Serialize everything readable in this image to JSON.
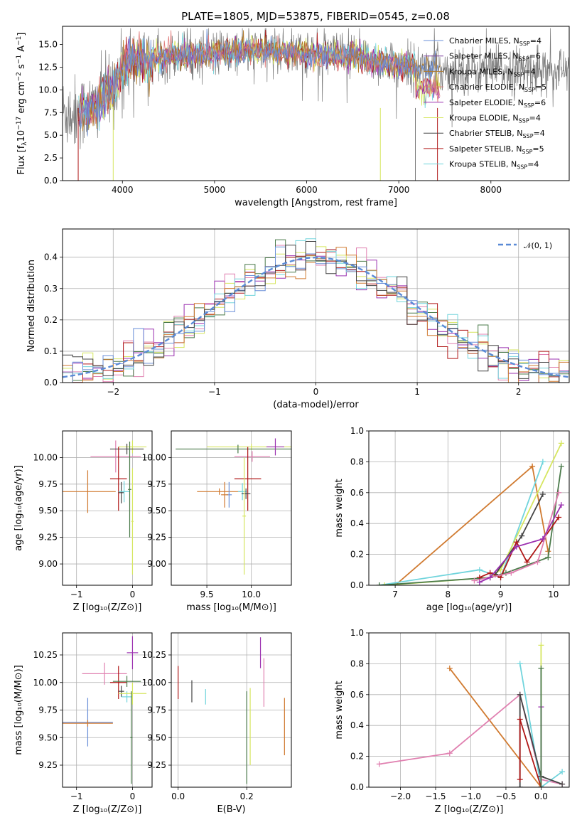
{
  "palette": {
    "chabrier_miles": "#6a8fd8",
    "salpeter_miles": "#7b3f9e",
    "kroupa_miles": "#b07a2a",
    "chabrier_elodie": "#e07a7a",
    "salpeter_elodie": "#9b30b0",
    "kroupa_elodie": "#d6e660",
    "chabrier_stelib": "#444444",
    "salpeter_stelib": "#b01818",
    "kroupa_stelib": "#70d4dc",
    "model_grey": "#777777",
    "orange": "#d07a30",
    "pink": "#e080b0",
    "darkgreen": "#4a7a4a",
    "normal_curve": "#5a8ad6"
  },
  "chart_data": [
    {
      "id": "spectrum",
      "type": "line",
      "title": "PLATE=1805, MJD=53875, FIBERID=0545, z=0.08",
      "xlabel": "wavelength [Angstrom, rest frame]",
      "ylabel": "Flux [f_λ 10^-17 erg cm^-2 s^-1 A^-1]",
      "xlim": [
        3350,
        8850
      ],
      "ylim": [
        0,
        17
      ],
      "xticks": [
        4000,
        5000,
        6000,
        7000,
        8000
      ],
      "yticks": [
        "0.0",
        "2.5",
        "5.0",
        "7.5",
        "10.0",
        "12.5",
        "15.0"
      ],
      "grid": false,
      "legend_position": "top-right",
      "series": [
        {
          "name": "Chabrier MILES, N",
          "sub": "SSP",
          "suffix": "=4",
          "color_key": "chabrier_miles"
        },
        {
          "name": "Salpeter MILES, N",
          "sub": "SSP",
          "suffix": "=6",
          "color_key": "salpeter_miles"
        },
        {
          "name": "Kroupa MILES, N",
          "sub": "SSP",
          "suffix": "=4",
          "color_key": "kroupa_miles"
        },
        {
          "name": "Chabrier ELODIE, N",
          "sub": "SSP",
          "suffix": "=5",
          "color_key": "chabrier_elodie"
        },
        {
          "name": "Salpeter ELODIE, N",
          "sub": "SSP",
          "suffix": "=6",
          "color_key": "salpeter_elodie"
        },
        {
          "name": "Kroupa ELODIE, N",
          "sub": "SSP",
          "suffix": "=4",
          "color_key": "kroupa_elodie"
        },
        {
          "name": "Chabrier STELIB, N",
          "sub": "SSP",
          "suffix": "=4",
          "color_key": "chabrier_stelib"
        },
        {
          "name": "Salpeter STELIB, N",
          "sub": "SSP",
          "suffix": "=5",
          "color_key": "salpeter_stelib"
        },
        {
          "name": "Kroupa STELIB, N",
          "sub": "SSP",
          "suffix": "=4",
          "color_key": "kroupa_stelib"
        }
      ],
      "continuum_x": [
        3500,
        3700,
        3900,
        4000,
        4100,
        4300,
        4500,
        5000,
        5500,
        6000,
        6500,
        7000,
        7200,
        7400,
        8000,
        8500,
        8800
      ],
      "continuum_y": [
        7.5,
        8.0,
        10.5,
        12.5,
        13.5,
        13.2,
        13.8,
        14.0,
        14.3,
        14.0,
        13.6,
        12.8,
        12.4,
        12.3,
        12.1,
        12.2,
        12.1
      ]
    },
    {
      "id": "residuals",
      "type": "bar",
      "xlabel": "(data-model)/error",
      "ylabel": "Normed distribution",
      "xlim": [
        -2.5,
        2.5
      ],
      "ylim": [
        0,
        0.49
      ],
      "xticks": [
        "−2",
        "−1",
        "0",
        "1",
        "2"
      ],
      "yticks": [
        "0.0",
        "0.1",
        "0.2",
        "0.3",
        "0.4"
      ],
      "grid": true,
      "legend": {
        "label": "𝒩(0, 1)",
        "position": "top-right"
      },
      "bin_width": 0.1
    },
    {
      "id": "z-age",
      "type": "scatter",
      "xlabel": "Z [log₁₀(Z/Z⊙)]",
      "ylabel": "age  [log₁₀(age/yr)]",
      "xlim": [
        -1.25,
        0.35
      ],
      "ylim": [
        8.8,
        10.25
      ],
      "xticks": [
        "−1",
        "0"
      ],
      "yticks": [
        "9.00",
        "9.25",
        "9.50",
        "9.75",
        "10.00"
      ],
      "grid": true,
      "points": [
        {
          "x": -0.8,
          "y": 9.68,
          "xerr": 0.5,
          "yerr": 0.2,
          "color_key": "orange"
        },
        {
          "x": -0.3,
          "y": 10.01,
          "xerr": 0.45,
          "yerr": 0.15,
          "color_key": "pink"
        },
        {
          "x": 0.0,
          "y": 10.1,
          "xerr": 0.25,
          "yerr": 0.06,
          "color_key": "kroupa_elodie"
        },
        {
          "x": -0.1,
          "y": 10.08,
          "xerr": 0.3,
          "yerr": 0.05,
          "color_key": "chabrier_stelib"
        },
        {
          "x": -0.25,
          "y": 9.8,
          "xerr": 0.15,
          "yerr": 0.3,
          "color_key": "salpeter_stelib"
        },
        {
          "x": -0.2,
          "y": 9.67,
          "xerr": 0.05,
          "yerr": 0.1,
          "color_key": "chabrier_stelib"
        },
        {
          "x": -0.15,
          "y": 9.68,
          "xerr": 0.1,
          "yerr": 0.1,
          "color_key": "kroupa_stelib"
        },
        {
          "x": -0.05,
          "y": 9.7,
          "xerr": 0.03,
          "yerr": 0.45,
          "color_key": "darkgreen"
        },
        {
          "x": 0.0,
          "y": 9.4,
          "xerr": 0.02,
          "yerr": 0.5,
          "color_key": "kroupa_elodie"
        }
      ]
    },
    {
      "id": "mass-age",
      "type": "scatter",
      "xlabel": "mass [log₁₀(M/M⊙)]",
      "ylabel": "",
      "xlim": [
        9.1,
        10.45
      ],
      "ylim": [
        8.8,
        10.25
      ],
      "xticks": [
        "9.5",
        "10.0"
      ],
      "yticks": [
        "9.00",
        "9.25",
        "9.50",
        "9.75",
        "10.00"
      ],
      "grid": true,
      "points": [
        {
          "x": 9.64,
          "y": 9.68,
          "xerr": 0.25,
          "yerr": 0.03,
          "color_key": "orange"
        },
        {
          "x": 9.75,
          "y": 9.65,
          "xerr": 0.03,
          "yerr": 0.12,
          "color_key": "chabrier_miles"
        },
        {
          "x": 9.7,
          "y": 9.65,
          "xerr": 0.04,
          "yerr": 0.12,
          "color_key": "orange"
        },
        {
          "x": 10.0,
          "y": 10.1,
          "xerr": 0.5,
          "yerr": 0.03,
          "color_key": "kroupa_elodie"
        },
        {
          "x": 9.85,
          "y": 10.08,
          "xerr": 0.7,
          "yerr": 0.04,
          "color_key": "darkgreen"
        },
        {
          "x": 10.01,
          "y": 10.01,
          "xerr": 0.2,
          "yerr": 0.05,
          "color_key": "pink"
        },
        {
          "x": 10.27,
          "y": 10.1,
          "xerr": 0.1,
          "yerr": 0.08,
          "color_key": "salpeter_elodie"
        },
        {
          "x": 9.96,
          "y": 9.8,
          "xerr": 0.15,
          "yerr": 0.3,
          "color_key": "salpeter_stelib"
        },
        {
          "x": 9.9,
          "y": 9.68,
          "xerr": 0.05,
          "yerr": 0.08,
          "color_key": "kroupa_stelib"
        },
        {
          "x": 9.94,
          "y": 9.66,
          "xerr": 0.05,
          "yerr": 0.05,
          "color_key": "chabrier_stelib"
        },
        {
          "x": 9.92,
          "y": 9.45,
          "xerr": 0.02,
          "yerr": 0.55,
          "color_key": "kroupa_elodie"
        }
      ]
    },
    {
      "id": "age-weight",
      "type": "line",
      "xlabel": "age  [log₁₀(age/yr)]",
      "ylabel": "mass weight",
      "xlim": [
        6.5,
        10.3
      ],
      "ylim": [
        0,
        1.0
      ],
      "xticks": [
        "7",
        "8",
        "9",
        "10"
      ],
      "yticks": [
        "0.0",
        "0.2",
        "0.4",
        "0.6",
        "0.8",
        "1.0"
      ],
      "grid": true,
      "series": [
        {
          "color_key": "orange",
          "x": [
            6.7,
            7.0,
            9.6,
            9.9,
            9.6
          ],
          "y": [
            0.0,
            0.0,
            0.77,
            0.22,
            0.77
          ]
        },
        {
          "color_key": "kroupa_stelib",
          "x": [
            6.7,
            8.6,
            9.0,
            9.8
          ],
          "y": [
            0.0,
            0.1,
            0.05,
            0.8
          ]
        },
        {
          "color_key": "kroupa_elodie",
          "x": [
            6.8,
            8.8,
            9.0,
            10.15
          ],
          "y": [
            0.0,
            0.05,
            0.1,
            0.92
          ]
        },
        {
          "color_key": "darkgreen",
          "x": [
            6.7,
            8.8,
            9.1,
            9.9,
            10.15
          ],
          "y": [
            0.0,
            0.05,
            0.08,
            0.18,
            0.77
          ]
        },
        {
          "color_key": "chabrier_stelib",
          "x": [
            8.9,
            9.4,
            9.8
          ],
          "y": [
            0.07,
            0.32,
            0.59
          ]
        },
        {
          "color_key": "salpeter_stelib",
          "x": [
            8.6,
            8.8,
            9.0,
            9.3,
            9.5,
            10.1
          ],
          "y": [
            0.05,
            0.08,
            0.05,
            0.28,
            0.15,
            0.44
          ]
        },
        {
          "color_key": "pink",
          "x": [
            8.5,
            9.2,
            9.7,
            10.1
          ],
          "y": [
            0.03,
            0.08,
            0.15,
            0.6
          ]
        },
        {
          "color_key": "salpeter_elodie",
          "x": [
            8.6,
            8.8,
            9.3,
            9.8,
            10.15
          ],
          "y": [
            0.02,
            0.05,
            0.25,
            0.3,
            0.52
          ]
        }
      ]
    },
    {
      "id": "z-mass",
      "type": "scatter",
      "xlabel": "Z [log₁₀(Z/Z⊙)]",
      "ylabel": "mass [log₁₀(M/M⊙)]",
      "xlim": [
        -1.25,
        0.35
      ],
      "ylim": [
        9.05,
        10.45
      ],
      "xticks": [
        "−1",
        "0"
      ],
      "yticks": [
        "9.25",
        "9.50",
        "9.75",
        "10.00",
        "10.25"
      ],
      "grid": true,
      "points": [
        {
          "x": -0.8,
          "y": 9.64,
          "xerr": 0.45,
          "yerr": 0.22,
          "color_key": "chabrier_miles"
        },
        {
          "x": -0.8,
          "y": 9.63,
          "xerr": 0.45,
          "yerr": 0.03,
          "color_key": "orange"
        },
        {
          "x": -0.5,
          "y": 10.08,
          "xerr": 0.4,
          "yerr": 0.1,
          "color_key": "pink"
        },
        {
          "x": 0.0,
          "y": 10.27,
          "xerr": 0.1,
          "yerr": 0.15,
          "color_key": "salpeter_elodie"
        },
        {
          "x": -0.25,
          "y": 10.0,
          "xerr": 0.15,
          "yerr": 0.15,
          "color_key": "salpeter_stelib"
        },
        {
          "x": -0.2,
          "y": 9.92,
          "xerr": 0.05,
          "yerr": 0.05,
          "color_key": "chabrier_stelib"
        },
        {
          "x": -0.1,
          "y": 10.01,
          "xerr": 0.25,
          "yerr": 0.05,
          "color_key": "darkgreen"
        },
        {
          "x": -0.1,
          "y": 9.87,
          "xerr": 0.1,
          "yerr": 0.05,
          "color_key": "kroupa_stelib"
        },
        {
          "x": 0.0,
          "y": 9.9,
          "xerr": 0.25,
          "yerr": 0.1,
          "color_key": "kroupa_elodie"
        },
        {
          "x": -0.02,
          "y": 9.5,
          "xerr": 0.02,
          "yerr": 0.42,
          "color_key": "darkgreen"
        }
      ]
    },
    {
      "id": "ebv-mass",
      "type": "scatter",
      "xlabel": "E(B-V)",
      "ylabel": "",
      "xlim": [
        -0.02,
        0.33
      ],
      "ylim": [
        9.05,
        10.45
      ],
      "xticks": [
        "0.0",
        "0.2"
      ],
      "yticks": [
        "9.25",
        "9.50",
        "9.75",
        "10.00",
        "10.25"
      ],
      "grid": true,
      "points": [
        {
          "x": 0.0,
          "y": 10.0,
          "xerr": 0.0,
          "yerr": 0.15,
          "color_key": "salpeter_stelib"
        },
        {
          "x": 0.04,
          "y": 9.92,
          "xerr": 0.0,
          "yerr": 0.1,
          "color_key": "chabrier_stelib"
        },
        {
          "x": 0.08,
          "y": 9.87,
          "xerr": 0.0,
          "yerr": 0.07,
          "color_key": "kroupa_stelib"
        },
        {
          "x": 0.2,
          "y": 9.5,
          "xerr": 0.0,
          "yerr": 0.42,
          "color_key": "darkgreen"
        },
        {
          "x": 0.21,
          "y": 9.6,
          "xerr": 0.0,
          "yerr": 0.35,
          "color_key": "kroupa_elodie"
        },
        {
          "x": 0.24,
          "y": 10.27,
          "xerr": 0.0,
          "yerr": 0.14,
          "color_key": "salpeter_elodie"
        },
        {
          "x": 0.25,
          "y": 10.0,
          "xerr": 0.0,
          "yerr": 0.22,
          "color_key": "pink"
        },
        {
          "x": 0.31,
          "y": 9.6,
          "xerr": 0.0,
          "yerr": 0.26,
          "color_key": "orange"
        }
      ]
    },
    {
      "id": "z-weight",
      "type": "line",
      "xlabel": "Z [log₁₀(Z/Z⊙)]",
      "ylabel": "mass weight",
      "xlim": [
        -2.45,
        0.4
      ],
      "ylim": [
        0,
        1.0
      ],
      "xticks": [
        "−2.0",
        "−1.5",
        "−1.0",
        "−0.5",
        "0.0"
      ],
      "yticks": [
        "0.0",
        "0.2",
        "0.4",
        "0.6",
        "0.8",
        "1.0"
      ],
      "grid": true,
      "series": [
        {
          "color_key": "orange",
          "x": [
            -1.3,
            0.0
          ],
          "y": [
            0.77,
            0.0
          ]
        },
        {
          "color_key": "pink",
          "x": [
            -2.3,
            -1.3,
            -0.3,
            0.0,
            0.3
          ],
          "y": [
            0.15,
            0.22,
            0.6,
            0.05,
            0.02
          ]
        },
        {
          "color_key": "kroupa_stelib",
          "x": [
            -0.3,
            0.0,
            0.3
          ],
          "y": [
            0.8,
            0.0,
            0.1
          ]
        },
        {
          "color_key": "kroupa_elodie",
          "x": [
            0.0,
            0.0
          ],
          "y": [
            0.0,
            0.92
          ]
        },
        {
          "color_key": "chabrier_stelib",
          "x": [
            -0.3,
            -0.3,
            0.0,
            0.3
          ],
          "y": [
            0.0,
            0.6,
            0.07,
            0.02
          ]
        },
        {
          "color_key": "salpeter_stelib",
          "x": [
            -0.3,
            -0.3,
            0.0
          ],
          "y": [
            0.05,
            0.44,
            0.0
          ]
        },
        {
          "color_key": "salpeter_elodie",
          "x": [
            0.0,
            0.0
          ],
          "y": [
            0.0,
            0.52
          ]
        },
        {
          "color_key": "darkgreen",
          "x": [
            0.0,
            0.0
          ],
          "y": [
            0.0,
            0.77
          ]
        }
      ]
    }
  ]
}
